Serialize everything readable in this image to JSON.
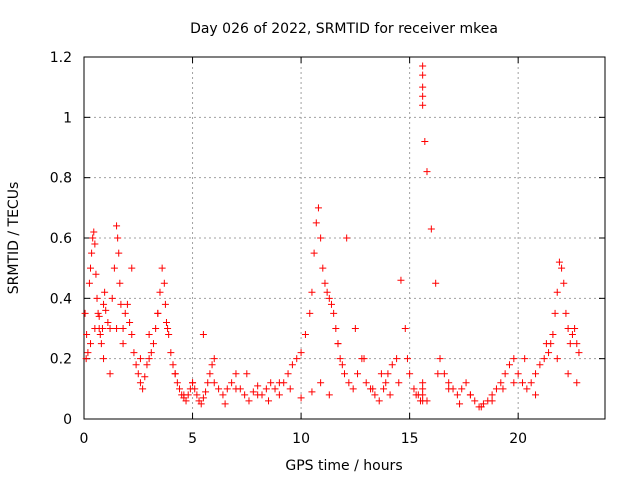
{
  "chart_data": {
    "type": "scatter",
    "title": "Day 026 of 2022, SRMTID for receiver mkea",
    "xlabel": "GPS time / hours",
    "ylabel": "SRMTID / TECUs",
    "xlim": [
      0,
      24
    ],
    "ylim": [
      0,
      1.2
    ],
    "xticks": [
      0,
      5,
      10,
      15,
      20
    ],
    "xtick_labels": [
      "0",
      "5",
      "10",
      "15",
      "20"
    ],
    "yticks": [
      0,
      0.2,
      0.4,
      0.6,
      0.8,
      1.0,
      1.2
    ],
    "ytick_labels": [
      "0",
      "0.2",
      "0.4",
      "0.6",
      "0.8",
      "1",
      "1.2"
    ],
    "grid": true,
    "marker": "+",
    "series": [
      {
        "name": "SRMTID",
        "color": "#ff0000",
        "x": [
          0.05,
          0.12,
          0.18,
          0.25,
          0.3,
          0.35,
          0.4,
          0.45,
          0.5,
          0.55,
          0.6,
          0.65,
          0.7,
          0.75,
          0.8,
          0.85,
          0.9,
          0.95,
          1.0,
          1.1,
          1.2,
          1.3,
          1.4,
          1.5,
          1.55,
          1.6,
          1.65,
          1.7,
          1.8,
          1.9,
          2.0,
          2.1,
          2.2,
          2.3,
          2.4,
          2.5,
          2.6,
          2.7,
          2.8,
          2.9,
          3.0,
          3.1,
          3.2,
          3.3,
          3.4,
          3.5,
          3.6,
          3.7,
          3.75,
          3.8,
          3.85,
          3.9,
          4.0,
          4.1,
          4.2,
          4.3,
          4.4,
          4.5,
          4.6,
          4.7,
          4.8,
          4.9,
          5.0,
          5.1,
          5.2,
          5.3,
          5.4,
          5.5,
          5.6,
          5.7,
          5.8,
          5.9,
          6.0,
          6.2,
          6.4,
          6.6,
          6.8,
          7.0,
          7.2,
          7.4,
          7.6,
          7.8,
          8.0,
          8.2,
          8.4,
          8.6,
          8.8,
          9.0,
          9.2,
          9.4,
          9.6,
          9.8,
          10.0,
          10.2,
          10.4,
          10.5,
          10.6,
          10.7,
          10.8,
          10.9,
          11.0,
          11.1,
          11.2,
          11.3,
          11.4,
          11.5,
          11.6,
          11.7,
          11.8,
          11.9,
          12.0,
          12.2,
          12.4,
          12.6,
          12.8,
          13.0,
          13.2,
          13.4,
          13.6,
          13.8,
          13.9,
          14.0,
          14.2,
          14.4,
          14.6,
          14.8,
          15.0,
          15.2,
          15.4,
          15.5,
          15.6,
          15.6,
          15.6,
          15.6,
          15.6,
          15.6,
          15.6,
          15.6,
          15.6,
          15.7,
          15.8,
          16.0,
          16.2,
          16.4,
          16.6,
          16.8,
          17.0,
          17.2,
          17.4,
          17.6,
          17.8,
          18.0,
          18.2,
          18.4,
          18.6,
          18.8,
          19.0,
          19.2,
          19.4,
          19.6,
          19.8,
          20.0,
          20.2,
          20.4,
          20.6,
          20.8,
          21.0,
          21.2,
          21.4,
          21.5,
          21.6,
          21.7,
          21.8,
          21.9,
          22.0,
          22.1,
          22.2,
          22.3,
          22.4,
          22.5,
          22.6,
          22.7,
          22.8,
          0.1,
          0.3,
          0.5,
          0.7,
          0.9,
          1.2,
          1.5,
          1.8,
          2.2,
          2.6,
          3.0,
          3.4,
          3.8,
          4.2,
          4.6,
          5.0,
          5.5,
          6.0,
          6.5,
          7.0,
          7.5,
          8.0,
          8.5,
          9.0,
          9.5,
          10.0,
          10.5,
          10.9,
          11.3,
          11.7,
          12.1,
          12.5,
          12.9,
          13.3,
          13.7,
          14.1,
          14.5,
          14.9,
          15.3,
          15.8,
          16.3,
          16.8,
          17.3,
          17.8,
          18.3,
          18.8,
          19.3,
          19.8,
          20.3,
          20.8,
          21.3,
          21.8,
          22.3,
          22.7
        ],
        "y": [
          0.35,
          0.28,
          0.22,
          0.45,
          0.5,
          0.55,
          0.6,
          0.62,
          0.58,
          0.48,
          0.4,
          0.35,
          0.3,
          0.28,
          0.25,
          0.3,
          0.38,
          0.42,
          0.36,
          0.32,
          0.3,
          0.4,
          0.5,
          0.64,
          0.6,
          0.55,
          0.45,
          0.38,
          0.3,
          0.35,
          0.38,
          0.32,
          0.28,
          0.22,
          0.18,
          0.15,
          0.12,
          0.1,
          0.14,
          0.18,
          0.2,
          0.22,
          0.25,
          0.3,
          0.35,
          0.42,
          0.5,
          0.45,
          0.38,
          0.32,
          0.3,
          0.28,
          0.22,
          0.18,
          0.15,
          0.12,
          0.1,
          0.08,
          0.07,
          0.06,
          0.08,
          0.1,
          0.12,
          0.1,
          0.08,
          0.06,
          0.05,
          0.07,
          0.09,
          0.12,
          0.15,
          0.18,
          0.12,
          0.1,
          0.08,
          0.1,
          0.12,
          0.15,
          0.1,
          0.08,
          0.06,
          0.09,
          0.11,
          0.08,
          0.1,
          0.12,
          0.1,
          0.08,
          0.12,
          0.15,
          0.18,
          0.2,
          0.22,
          0.28,
          0.35,
          0.42,
          0.55,
          0.65,
          0.7,
          0.6,
          0.5,
          0.45,
          0.42,
          0.4,
          0.38,
          0.35,
          0.3,
          0.25,
          0.2,
          0.18,
          0.15,
          0.12,
          0.1,
          0.15,
          0.2,
          0.12,
          0.1,
          0.08,
          0.06,
          0.1,
          0.12,
          0.15,
          0.18,
          0.2,
          0.46,
          0.3,
          0.15,
          0.1,
          0.08,
          0.06,
          0.1,
          0.12,
          0.08,
          0.06,
          1.17,
          1.14,
          1.1,
          1.07,
          1.04,
          0.92,
          0.82,
          0.63,
          0.45,
          0.2,
          0.15,
          0.12,
          0.1,
          0.08,
          0.1,
          0.12,
          0.08,
          0.06,
          0.04,
          0.05,
          0.06,
          0.08,
          0.1,
          0.12,
          0.15,
          0.18,
          0.2,
          0.15,
          0.12,
          0.1,
          0.12,
          0.15,
          0.18,
          0.2,
          0.22,
          0.25,
          0.28,
          0.35,
          0.42,
          0.52,
          0.5,
          0.45,
          0.35,
          0.3,
          0.25,
          0.28,
          0.3,
          0.25,
          0.22,
          0.2,
          0.25,
          0.3,
          0.34,
          0.2,
          0.15,
          0.3,
          0.25,
          0.5,
          0.2,
          0.28,
          0.35,
          0.32,
          0.15,
          0.08,
          0.12,
          0.28,
          0.2,
          0.05,
          0.1,
          0.15,
          0.08,
          0.06,
          0.12,
          0.1,
          0.07,
          0.09,
          0.12,
          0.08,
          0.25,
          0.6,
          0.3,
          0.2,
          0.1,
          0.15,
          0.08,
          0.12,
          0.2,
          0.08,
          0.06,
          0.15,
          0.1,
          0.05,
          0.08,
          0.04,
          0.06,
          0.1,
          0.12,
          0.2,
          0.08,
          0.25,
          0.2,
          0.15,
          0.12
        ]
      }
    ]
  }
}
